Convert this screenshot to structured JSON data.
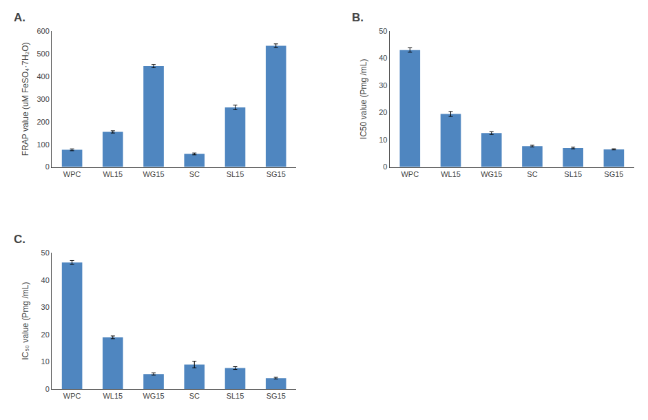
{
  "chart_data": [
    {
      "type": "bar",
      "title": "A.",
      "categories": [
        "WPC",
        "WL15",
        "WG15",
        "SC",
        "SL15",
        "SG15"
      ],
      "values": [
        76,
        155,
        445,
        58,
        263,
        535
      ],
      "errors": [
        4,
        5,
        7,
        4,
        10,
        8
      ],
      "ylabel": "FRAP value (uM FeSO₄·7H₂O)",
      "ylim": [
        0,
        600
      ],
      "yticks": [
        0,
        100,
        200,
        300,
        400,
        500,
        600
      ],
      "color": "#4f86c0",
      "grid": false
    },
    {
      "type": "bar",
      "title": "B.",
      "categories": [
        "WPC",
        "WL15",
        "WG15",
        "SC",
        "SL15",
        "SG15"
      ],
      "values": [
        43,
        19.5,
        12.5,
        7.7,
        7.0,
        6.5
      ],
      "errors": [
        0.8,
        0.9,
        0.5,
        0.3,
        0.3,
        0.2
      ],
      "ylabel": "IC50 value (Pmg /mL)",
      "ylim": [
        0,
        50
      ],
      "yticks": [
        0,
        10,
        20,
        30,
        40,
        50
      ],
      "color": "#4f86c0",
      "grid": false
    },
    {
      "type": "bar",
      "title": "C.",
      "categories": [
        "WPC",
        "WL15",
        "WG15",
        "SC",
        "SL15",
        "SG15"
      ],
      "values": [
        46.5,
        19.0,
        5.5,
        9.0,
        7.7,
        4.0
      ],
      "errors": [
        0.7,
        0.5,
        0.4,
        1.2,
        0.5,
        0.3
      ],
      "ylabel": "IC₅₀ value (Pmg /mL)",
      "ylim": [
        0,
        50
      ],
      "yticks": [
        0,
        10,
        20,
        30,
        40,
        50
      ],
      "color": "#4f86c0",
      "grid": false
    }
  ]
}
